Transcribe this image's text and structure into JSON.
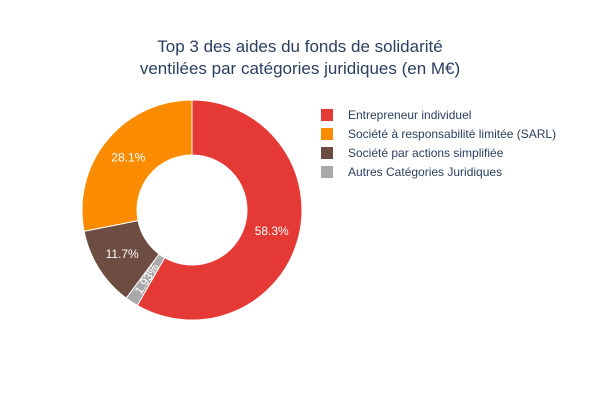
{
  "chart_data": {
    "type": "pie",
    "hole": true,
    "title_lines": [
      "Top 3 des aides du fonds de solidarité",
      "ventilées par catégories juridiques (en M€)"
    ],
    "slices": [
      {
        "label": "Entrepreneur individuel",
        "percent": 58.3,
        "percent_text": "58.3%",
        "color": "#e53935"
      },
      {
        "label": "Autres Catégories Juridiques",
        "percent": 1.93,
        "percent_text": "1.93%",
        "color": "#a9a9a9"
      },
      {
        "label": "Société par actions simplifiée",
        "percent": 11.7,
        "percent_text": "11.7%",
        "color": "#6d4c41"
      },
      {
        "label": "Société à responsabilité limitée (SARL)",
        "percent": 28.1,
        "percent_text": "28.1%",
        "color": "#fb8c00"
      }
    ],
    "legend": {
      "placement": "right",
      "entries": [
        "Entrepreneur individuel",
        "Société à responsabilité limitée (SARL)",
        "Société par actions simplifiée",
        "Autres Catégories Juridiques"
      ]
    }
  }
}
